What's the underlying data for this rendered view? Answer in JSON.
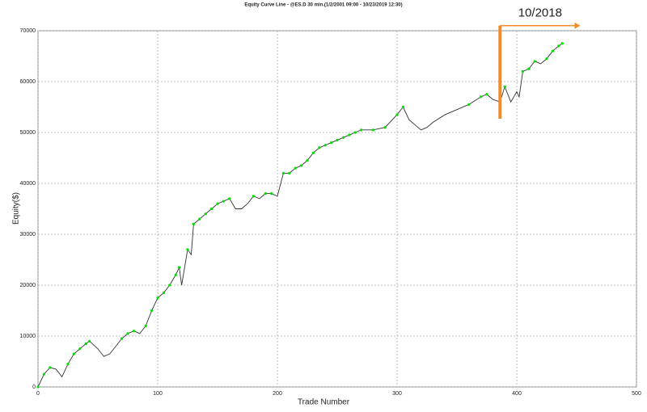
{
  "chart_data": {
    "type": "line",
    "title": "Equity Curve Line - @ES.D 30 min.(1/2/2001 09:00 - 10/23/2019 12:30)",
    "xlabel": "Trade Number",
    "ylabel": "Equity($)",
    "xlim": [
      0,
      500
    ],
    "xticks": [
      0,
      100,
      200,
      300,
      400,
      500
    ],
    "ylim": [
      0,
      70000
    ],
    "yticks": [
      0,
      10000,
      20000,
      30000,
      40000,
      50000,
      60000,
      70000
    ],
    "grid": true,
    "new_high_color": "#00e000",
    "series": [
      {
        "name": "Equity",
        "color": "#333333",
        "x": [
          0,
          5,
          10,
          15,
          20,
          25,
          30,
          35,
          40,
          43,
          50,
          55,
          60,
          65,
          70,
          75,
          80,
          85,
          90,
          95,
          100,
          105,
          110,
          115,
          118,
          120,
          125,
          128,
          130,
          135,
          140,
          145,
          150,
          155,
          160,
          165,
          170,
          175,
          180,
          185,
          190,
          195,
          200,
          205,
          210,
          215,
          220,
          225,
          230,
          235,
          240,
          245,
          250,
          255,
          260,
          265,
          270,
          280,
          290,
          300,
          305,
          310,
          315,
          320,
          325,
          330,
          340,
          350,
          360,
          370,
          375,
          380,
          386,
          390,
          395,
          400,
          402,
          405,
          410,
          415,
          420,
          425,
          430,
          435,
          438
        ],
        "values": [
          0,
          2500,
          3800,
          3500,
          2000,
          4500,
          6500,
          7500,
          8500,
          9000,
          7500,
          6000,
          6500,
          8000,
          9500,
          10500,
          11000,
          10500,
          12000,
          15000,
          17500,
          18500,
          20000,
          22000,
          23500,
          20000,
          27000,
          26000,
          32000,
          33000,
          34000,
          35000,
          36000,
          36500,
          37000,
          35000,
          35000,
          36000,
          37500,
          37000,
          38000,
          38000,
          37500,
          42000,
          42000,
          43000,
          43500,
          44500,
          46000,
          47000,
          47500,
          48000,
          48500,
          49000,
          49500,
          50000,
          50500,
          50500,
          51000,
          53500,
          55000,
          52500,
          51500,
          50500,
          51000,
          52000,
          53500,
          54500,
          55500,
          57000,
          57500,
          56500,
          56000,
          59000,
          56000,
          58000,
          57000,
          62000,
          62500,
          64000,
          63500,
          64500,
          66000,
          67000,
          67500
        ]
      }
    ],
    "annotation": {
      "text": "10/2018",
      "x": 386,
      "x_end": 453,
      "y": [
        52700,
        71000
      ],
      "color": "#f28c28"
    }
  }
}
